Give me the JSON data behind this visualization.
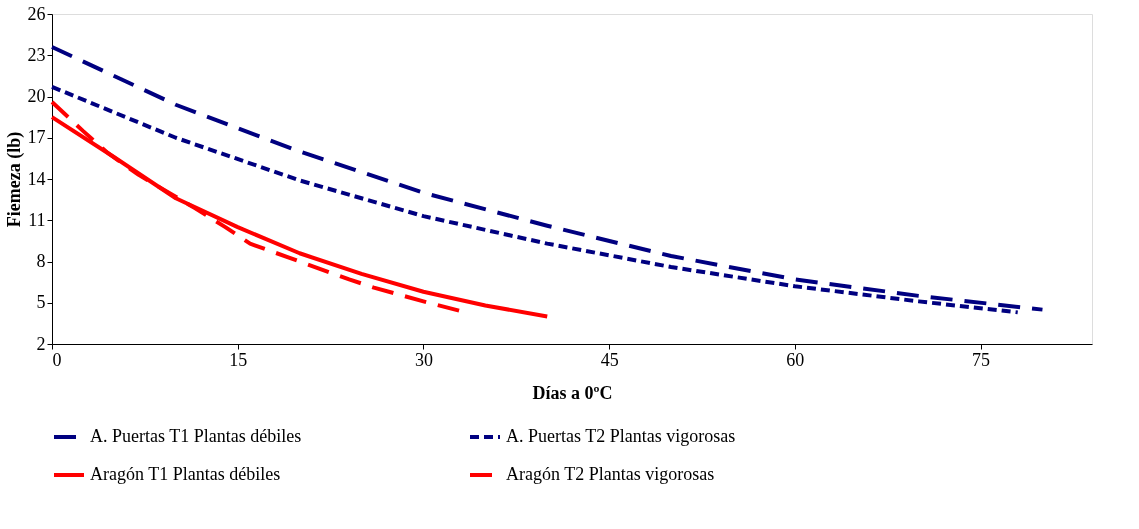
{
  "chart_data": {
    "type": "line",
    "xlabel": "Días a 0ºC",
    "ylabel": "Fiemeza (lb)",
    "xlim": [
      0,
      84
    ],
    "xticks": [
      0,
      15,
      30,
      45,
      60,
      75
    ],
    "ylim": [
      2,
      26
    ],
    "yticks": [
      2,
      5,
      8,
      11,
      14,
      17,
      20,
      23,
      26
    ],
    "grid": false,
    "legend": "bottom",
    "marker": "none",
    "series": [
      {
        "name": "A. Puertas T1 Plantas débiles",
        "color": "#000080",
        "line_style": "dashed",
        "x": [
          0,
          10,
          20,
          30,
          40,
          50,
          60,
          70,
          80
        ],
        "values": [
          23.6,
          19.4,
          16.0,
          13.0,
          10.6,
          8.4,
          6.7,
          5.5,
          4.5
        ]
      },
      {
        "name": "A. Puertas T2 Plantas vigorosas",
        "color": "#000080",
        "line_style": "dotted",
        "x": [
          0,
          10,
          20,
          30,
          40,
          50,
          60,
          70,
          78
        ],
        "values": [
          20.7,
          17.0,
          13.9,
          11.3,
          9.3,
          7.6,
          6.2,
          5.1,
          4.3
        ]
      },
      {
        "name": "Aragón T1 Plantas débiles",
        "color": "#ff0000",
        "line_style": "solid",
        "x": [
          0,
          5,
          10,
          15,
          20,
          25,
          30,
          35,
          40
        ],
        "values": [
          18.5,
          15.6,
          12.6,
          10.5,
          8.6,
          7.1,
          5.8,
          4.8,
          4.0
        ]
      },
      {
        "name": "Aragón T2 Plantas vigorosas",
        "color": "#ff0000",
        "line_style": "dashed",
        "x": [
          0,
          2.5,
          4.5,
          7,
          11.5,
          14,
          16,
          20,
          24,
          26,
          30,
          33
        ],
        "values": [
          19.6,
          17.5,
          15.9,
          14.3,
          11.9,
          10.5,
          9.3,
          8.0,
          6.7,
          6.1,
          5.1,
          4.4
        ]
      }
    ]
  }
}
